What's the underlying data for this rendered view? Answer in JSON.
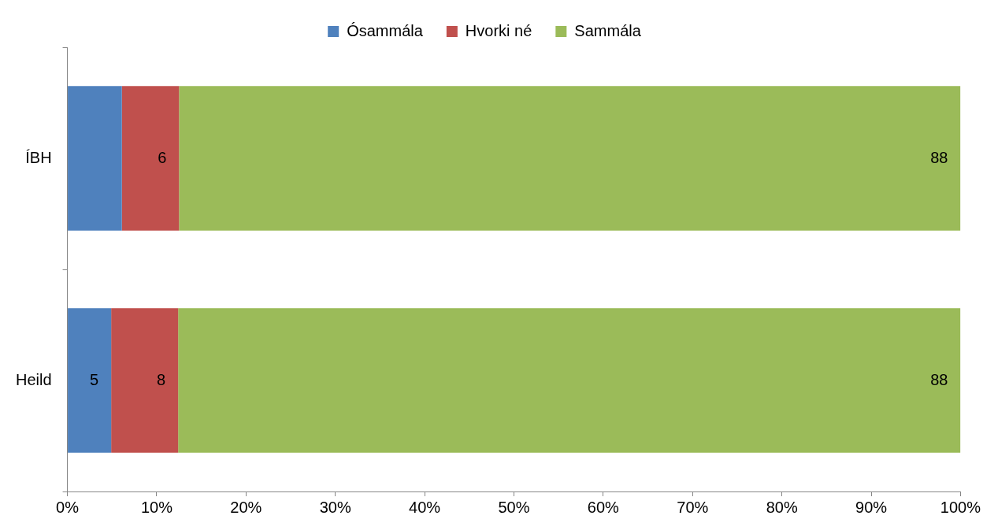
{
  "chart_data": {
    "type": "bar",
    "orientation": "horizontal",
    "stacked": true,
    "categories": [
      "ÍBH",
      "Heild"
    ],
    "series": [
      {
        "name": "Ósammála",
        "color": "#4f81bd",
        "values": [
          6.1,
          4.9
        ],
        "value_labels": [
          null,
          "5"
        ]
      },
      {
        "name": "Hvorki né",
        "color": "#c0504d",
        "values": [
          6.4,
          7.5
        ],
        "value_labels": [
          "6",
          "8"
        ]
      },
      {
        "name": "Sammála",
        "color": "#9bbb59",
        "values": [
          87.5,
          87.6
        ],
        "value_labels": [
          "88",
          "88"
        ]
      }
    ],
    "xlim": [
      0,
      100
    ],
    "xticks": [
      {
        "value": 0,
        "label": "0%"
      },
      {
        "value": 10,
        "label": "10%"
      },
      {
        "value": 20,
        "label": "20%"
      },
      {
        "value": 30,
        "label": "30%"
      },
      {
        "value": 40,
        "label": "40%"
      },
      {
        "value": 50,
        "label": "50%"
      },
      {
        "value": 60,
        "label": "60%"
      },
      {
        "value": 70,
        "label": "70%"
      },
      {
        "value": 80,
        "label": "80%"
      },
      {
        "value": 90,
        "label": "90%"
      },
      {
        "value": 100,
        "label": "100%"
      }
    ],
    "grid": false,
    "legend": "top"
  }
}
